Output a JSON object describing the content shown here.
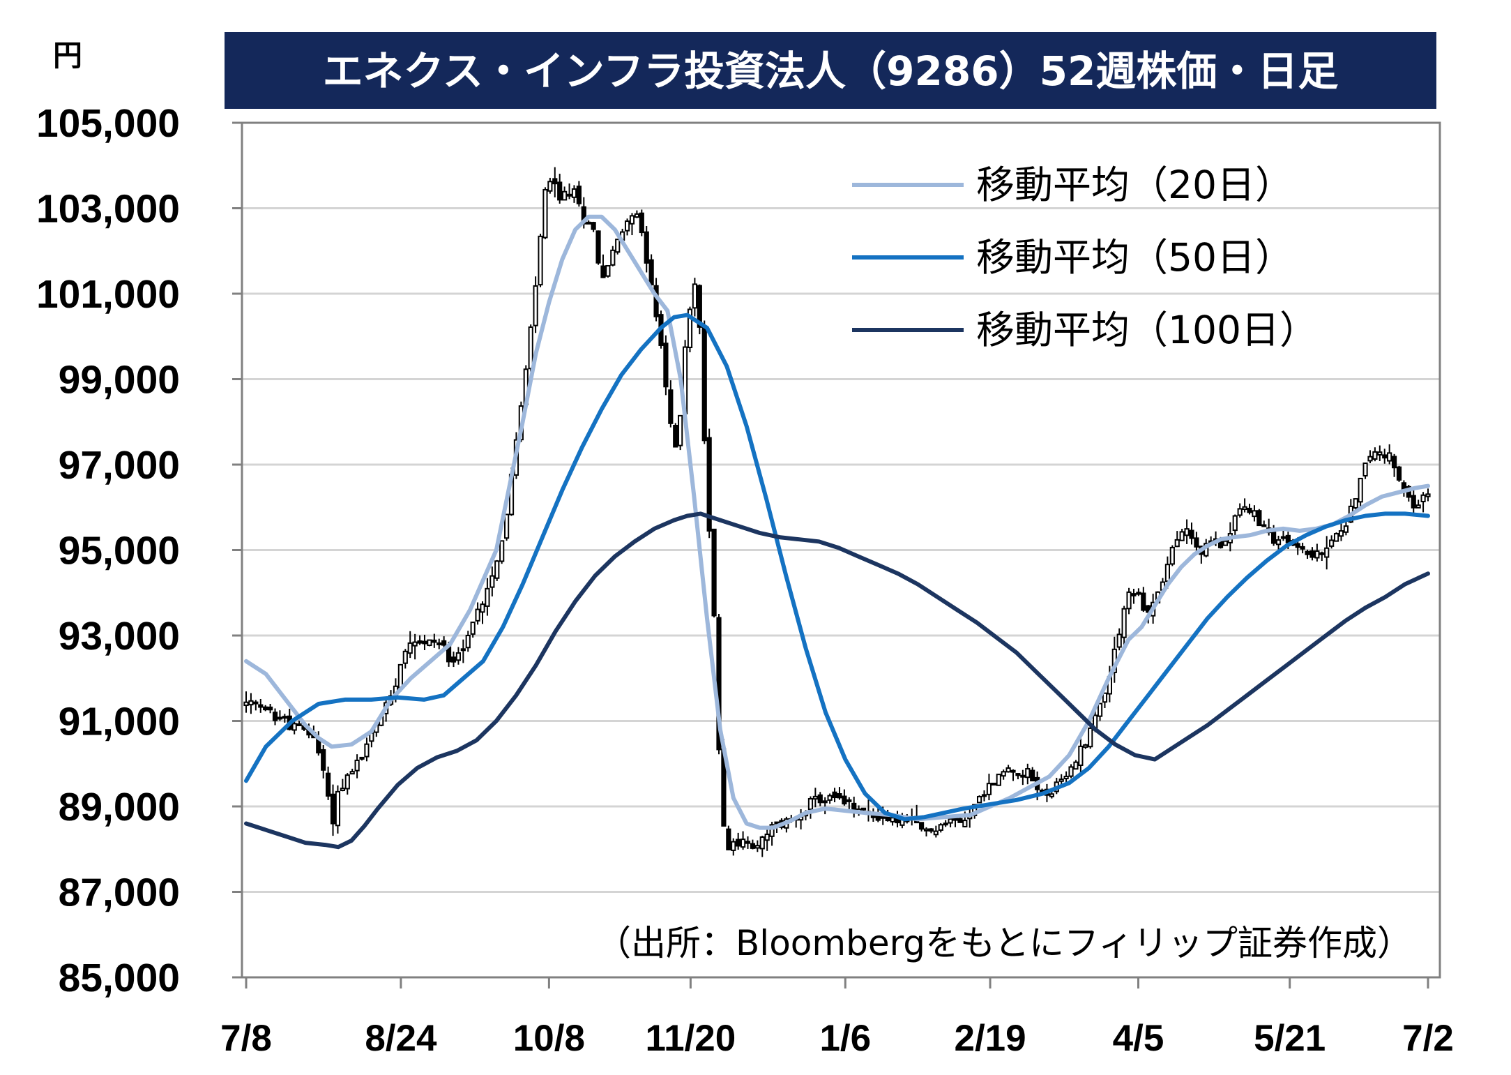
{
  "chart_data": {
    "type": "candlestick",
    "title": "エネクス・インフラ投資法人（9286）52週株価・日足",
    "unit": "円",
    "source": "（出所：Bloombergをもとにフィリップ証券作成）",
    "ylim": [
      85000,
      105000
    ],
    "yticks": [
      "85,000",
      "87,000",
      "89,000",
      "91,000",
      "93,000",
      "95,000",
      "97,000",
      "99,000",
      "101,000",
      "103,000",
      "105,000"
    ],
    "ytick_values": [
      85000,
      87000,
      89000,
      91000,
      93000,
      95000,
      97000,
      99000,
      101000,
      103000,
      105000
    ],
    "xticks": [
      "7/8",
      "8/24",
      "10/8",
      "11/20",
      "1/6",
      "2/19",
      "4/5",
      "5/21",
      "7/2"
    ],
    "xtick_days": [
      0,
      47,
      92,
      135,
      182,
      226,
      271,
      317,
      359
    ],
    "x_range_days": [
      0,
      359
    ],
    "grid": true,
    "legend_position": "top-right",
    "colors": {
      "title_bg": "#14285a",
      "ma20": "#9db7db",
      "ma50": "#1472c2",
      "ma100": "#1c3560",
      "candle_up": "#ffffff",
      "candle_down": "#000000"
    },
    "price_path": [
      [
        0,
        91400
      ],
      [
        7,
        91200
      ],
      [
        14,
        90900
      ],
      [
        20,
        90700
      ],
      [
        24,
        89800
      ],
      [
        26,
        88500
      ],
      [
        28,
        89400
      ],
      [
        32,
        89800
      ],
      [
        36,
        90300
      ],
      [
        40,
        91000
      ],
      [
        44,
        91600
      ],
      [
        47,
        92400
      ],
      [
        50,
        93000
      ],
      [
        54,
        92800
      ],
      [
        58,
        92900
      ],
      [
        62,
        92500
      ],
      [
        66,
        92700
      ],
      [
        70,
        93500
      ],
      [
        74,
        94300
      ],
      [
        78,
        95300
      ],
      [
        82,
        97500
      ],
      [
        85,
        99200
      ],
      [
        87,
        100500
      ],
      [
        89,
        102000
      ],
      [
        91,
        103500
      ],
      [
        93,
        103600
      ],
      [
        96,
        103200
      ],
      [
        99,
        103500
      ],
      [
        102,
        102800
      ],
      [
        105,
        102700
      ],
      [
        108,
        101300
      ],
      [
        111,
        101900
      ],
      [
        114,
        102400
      ],
      [
        117,
        103000
      ],
      [
        120,
        102500
      ],
      [
        123,
        101300
      ],
      [
        126,
        99700
      ],
      [
        129,
        97900
      ],
      [
        131,
        97100
      ],
      [
        133,
        99600
      ],
      [
        135,
        100800
      ],
      [
        137,
        101400
      ],
      [
        140,
        96300
      ],
      [
        142,
        93800
      ],
      [
        144,
        89500
      ],
      [
        146,
        88000
      ],
      [
        150,
        88200
      ],
      [
        155,
        88000
      ],
      [
        160,
        88500
      ],
      [
        166,
        88700
      ],
      [
        172,
        89100
      ],
      [
        178,
        89200
      ],
      [
        184,
        89000
      ],
      [
        190,
        88800
      ],
      [
        196,
        88700
      ],
      [
        202,
        88600
      ],
      [
        207,
        88400
      ],
      [
        212,
        88600
      ],
      [
        218,
        88700
      ],
      [
        222,
        89100
      ],
      [
        226,
        89500
      ],
      [
        230,
        89800
      ],
      [
        234,
        89900
      ],
      [
        238,
        89700
      ],
      [
        242,
        89300
      ],
      [
        246,
        89400
      ],
      [
        250,
        89800
      ],
      [
        254,
        90400
      ],
      [
        258,
        91100
      ],
      [
        262,
        92000
      ],
      [
        265,
        93100
      ],
      [
        268,
        94000
      ],
      [
        271,
        93900
      ],
      [
        274,
        93500
      ],
      [
        278,
        94200
      ],
      [
        282,
        95200
      ],
      [
        286,
        95500
      ],
      [
        290,
        94900
      ],
      [
        293,
        95200
      ],
      [
        297,
        95100
      ],
      [
        300,
        95800
      ],
      [
        304,
        96000
      ],
      [
        308,
        95600
      ],
      [
        312,
        95300
      ],
      [
        316,
        95200
      ],
      [
        320,
        95100
      ],
      [
        324,
        94800
      ],
      [
        328,
        95000
      ],
      [
        332,
        95400
      ],
      [
        336,
        96000
      ],
      [
        340,
        97000
      ],
      [
        344,
        97400
      ],
      [
        348,
        97100
      ],
      [
        351,
        96400
      ],
      [
        354,
        96000
      ],
      [
        357,
        96200
      ],
      [
        359,
        96300
      ]
    ],
    "ma_periods": [
      20,
      50,
      100
    ],
    "series": [
      {
        "name": "移動平均（20日）",
        "values": [
          [
            0,
            92400
          ],
          [
            6,
            92100
          ],
          [
            12,
            91500
          ],
          [
            18,
            90900
          ],
          [
            22,
            90600
          ],
          [
            26,
            90400
          ],
          [
            32,
            90450
          ],
          [
            38,
            90750
          ],
          [
            44,
            91500
          ],
          [
            50,
            92000
          ],
          [
            56,
            92400
          ],
          [
            62,
            92800
          ],
          [
            68,
            93600
          ],
          [
            72,
            94300
          ],
          [
            76,
            95000
          ],
          [
            80,
            96500
          ],
          [
            84,
            98000
          ],
          [
            88,
            99600
          ],
          [
            92,
            100800
          ],
          [
            96,
            101800
          ],
          [
            100,
            102500
          ],
          [
            104,
            102800
          ],
          [
            108,
            102800
          ],
          [
            112,
            102500
          ],
          [
            116,
            102000
          ],
          [
            120,
            101500
          ],
          [
            124,
            101000
          ],
          [
            128,
            100600
          ],
          [
            132,
            99000
          ],
          [
            136,
            96300
          ],
          [
            140,
            93400
          ],
          [
            144,
            90800
          ],
          [
            148,
            89200
          ],
          [
            152,
            88600
          ],
          [
            156,
            88500
          ],
          [
            160,
            88500
          ],
          [
            165,
            88650
          ],
          [
            170,
            88850
          ],
          [
            176,
            88950
          ],
          [
            182,
            88900
          ],
          [
            188,
            88850
          ],
          [
            196,
            88800
          ],
          [
            204,
            88700
          ],
          [
            212,
            88750
          ],
          [
            220,
            88800
          ],
          [
            226,
            89000
          ],
          [
            232,
            89200
          ],
          [
            238,
            89450
          ],
          [
            244,
            89700
          ],
          [
            250,
            90200
          ],
          [
            256,
            91000
          ],
          [
            262,
            92000
          ],
          [
            268,
            92900
          ],
          [
            272,
            93200
          ],
          [
            276,
            93700
          ],
          [
            280,
            94200
          ],
          [
            284,
            94600
          ],
          [
            288,
            94900
          ],
          [
            292,
            95100
          ],
          [
            296,
            95250
          ],
          [
            300,
            95300
          ],
          [
            305,
            95350
          ],
          [
            310,
            95450
          ],
          [
            315,
            95500
          ],
          [
            320,
            95450
          ],
          [
            325,
            95500
          ],
          [
            330,
            95600
          ],
          [
            335,
            95800
          ],
          [
            340,
            96050
          ],
          [
            345,
            96250
          ],
          [
            350,
            96350
          ],
          [
            355,
            96450
          ],
          [
            359,
            96500
          ]
        ]
      },
      {
        "name": "移動平均（50日）",
        "values": [
          [
            0,
            89600
          ],
          [
            6,
            90400
          ],
          [
            14,
            91000
          ],
          [
            22,
            91400
          ],
          [
            30,
            91500
          ],
          [
            38,
            91500
          ],
          [
            46,
            91550
          ],
          [
            54,
            91500
          ],
          [
            60,
            91600
          ],
          [
            66,
            92000
          ],
          [
            72,
            92400
          ],
          [
            78,
            93200
          ],
          [
            84,
            94200
          ],
          [
            90,
            95300
          ],
          [
            96,
            96400
          ],
          [
            102,
            97400
          ],
          [
            108,
            98300
          ],
          [
            114,
            99100
          ],
          [
            120,
            99700
          ],
          [
            126,
            100200
          ],
          [
            130,
            100450
          ],
          [
            134,
            100500
          ],
          [
            140,
            100200
          ],
          [
            146,
            99300
          ],
          [
            152,
            97900
          ],
          [
            158,
            96200
          ],
          [
            164,
            94400
          ],
          [
            170,
            92700
          ],
          [
            176,
            91200
          ],
          [
            182,
            90100
          ],
          [
            188,
            89300
          ],
          [
            194,
            88850
          ],
          [
            200,
            88700
          ],
          [
            206,
            88750
          ],
          [
            212,
            88850
          ],
          [
            218,
            88950
          ],
          [
            226,
            89050
          ],
          [
            234,
            89150
          ],
          [
            242,
            89300
          ],
          [
            250,
            89550
          ],
          [
            256,
            89900
          ],
          [
            262,
            90400
          ],
          [
            268,
            91000
          ],
          [
            274,
            91600
          ],
          [
            280,
            92200
          ],
          [
            286,
            92800
          ],
          [
            292,
            93400
          ],
          [
            298,
            93900
          ],
          [
            304,
            94350
          ],
          [
            310,
            94750
          ],
          [
            316,
            95100
          ],
          [
            322,
            95350
          ],
          [
            328,
            95550
          ],
          [
            334,
            95700
          ],
          [
            340,
            95800
          ],
          [
            346,
            95850
          ],
          [
            352,
            95850
          ],
          [
            359,
            95800
          ]
        ]
      },
      {
        "name": "移動平均（100日）",
        "values": [
          [
            0,
            88600
          ],
          [
            6,
            88450
          ],
          [
            12,
            88300
          ],
          [
            18,
            88150
          ],
          [
            24,
            88100
          ],
          [
            28,
            88050
          ],
          [
            32,
            88200
          ],
          [
            36,
            88550
          ],
          [
            40,
            88950
          ],
          [
            46,
            89500
          ],
          [
            52,
            89900
          ],
          [
            58,
            90150
          ],
          [
            64,
            90300
          ],
          [
            70,
            90550
          ],
          [
            76,
            91000
          ],
          [
            82,
            91600
          ],
          [
            88,
            92300
          ],
          [
            94,
            93100
          ],
          [
            100,
            93800
          ],
          [
            106,
            94400
          ],
          [
            112,
            94850
          ],
          [
            118,
            95200
          ],
          [
            124,
            95500
          ],
          [
            130,
            95700
          ],
          [
            134,
            95800
          ],
          [
            138,
            95850
          ],
          [
            144,
            95700
          ],
          [
            150,
            95550
          ],
          [
            156,
            95400
          ],
          [
            162,
            95300
          ],
          [
            168,
            95250
          ],
          [
            174,
            95200
          ],
          [
            180,
            95050
          ],
          [
            186,
            94850
          ],
          [
            192,
            94650
          ],
          [
            198,
            94450
          ],
          [
            204,
            94200
          ],
          [
            210,
            93900
          ],
          [
            216,
            93600
          ],
          [
            222,
            93300
          ],
          [
            228,
            92950
          ],
          [
            234,
            92600
          ],
          [
            240,
            92150
          ],
          [
            246,
            91700
          ],
          [
            252,
            91250
          ],
          [
            258,
            90800
          ],
          [
            264,
            90450
          ],
          [
            270,
            90200
          ],
          [
            276,
            90100
          ],
          [
            280,
            90300
          ],
          [
            286,
            90600
          ],
          [
            292,
            90900
          ],
          [
            298,
            91250
          ],
          [
            304,
            91600
          ],
          [
            310,
            91950
          ],
          [
            316,
            92300
          ],
          [
            322,
            92650
          ],
          [
            328,
            93000
          ],
          [
            334,
            93350
          ],
          [
            340,
            93650
          ],
          [
            346,
            93900
          ],
          [
            352,
            94200
          ],
          [
            359,
            94450
          ]
        ]
      }
    ]
  }
}
